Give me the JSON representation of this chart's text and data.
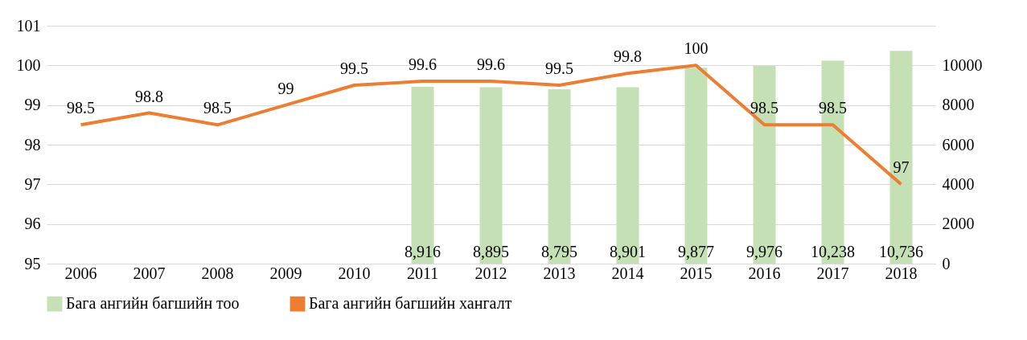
{
  "chart_data": {
    "type": "bar",
    "categories": [
      "2006",
      "2007",
      "2008",
      "2009",
      "2010",
      "2011",
      "2012",
      "2013",
      "2014",
      "2015",
      "2016",
      "2017",
      "2018"
    ],
    "series": [
      {
        "name": "Бага ангийн багшийн тоо",
        "axis": "y2",
        "color": "#c5e0b4",
        "values": [
          null,
          null,
          null,
          null,
          null,
          8916,
          8895,
          8795,
          8901,
          9877,
          9976,
          10238,
          10736
        ],
        "value_labels": [
          null,
          null,
          null,
          null,
          null,
          "8,916",
          "8,895",
          "8,795",
          "8,901",
          "9,877",
          "9,976",
          "10,238",
          "10,736"
        ]
      },
      {
        "name": "Бага ангийн багшийн хангалт",
        "type": "line",
        "color": "#ed7d31",
        "values": [
          98.5,
          98.8,
          98.5,
          99,
          99.5,
          99.6,
          99.6,
          99.5,
          99.8,
          100,
          98.5,
          98.5,
          97
        ]
      }
    ],
    "ylim": [
      95,
      101
    ],
    "yticks": [
      95,
      96,
      97,
      98,
      99,
      100,
      101
    ],
    "y2lim": [
      0,
      12000
    ],
    "y2ticks": [
      0,
      2000,
      4000,
      6000,
      8000,
      10000
    ],
    "data_labels": true,
    "grid": "y",
    "legend": "bottom",
    "marker": "none",
    "line_style": "solid"
  }
}
